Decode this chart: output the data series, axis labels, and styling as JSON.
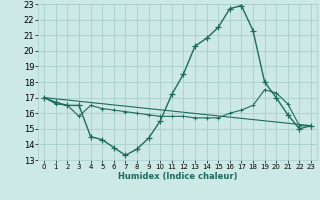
{
  "xlabel": "Humidex (Indice chaleur)",
  "xlim": [
    -0.5,
    23.5
  ],
  "ylim": [
    13,
    23
  ],
  "yticks": [
    13,
    14,
    15,
    16,
    17,
    18,
    19,
    20,
    21,
    22,
    23
  ],
  "xticks": [
    0,
    1,
    2,
    3,
    4,
    5,
    6,
    7,
    8,
    9,
    10,
    11,
    12,
    13,
    14,
    15,
    16,
    17,
    18,
    19,
    20,
    21,
    22,
    23
  ],
  "bg_color": "#cce9e5",
  "grid_color": "#aacfcb",
  "line_color": "#1e6b5e",
  "series1_x": [
    0,
    1,
    2,
    3,
    4,
    5,
    6,
    7,
    8,
    9,
    10,
    11,
    12,
    13,
    14,
    15,
    16,
    17,
    18,
    19,
    20,
    21,
    22,
    23
  ],
  "series1_y": [
    17.0,
    16.7,
    16.5,
    16.5,
    14.5,
    14.3,
    13.8,
    13.3,
    13.7,
    14.4,
    15.5,
    17.2,
    18.5,
    20.3,
    20.8,
    21.5,
    22.7,
    22.9,
    21.3,
    18.0,
    17.0,
    15.9,
    15.0,
    15.2
  ],
  "series2_x": [
    0,
    1,
    2,
    3,
    4,
    5,
    6,
    7,
    8,
    9,
    10,
    11,
    12,
    13,
    14,
    15,
    16,
    17,
    18,
    19,
    20,
    21,
    22,
    23
  ],
  "series2_y": [
    17.0,
    16.6,
    16.5,
    15.8,
    16.5,
    16.3,
    16.2,
    16.1,
    16.0,
    15.9,
    15.8,
    15.8,
    15.8,
    15.7,
    15.7,
    15.7,
    16.0,
    16.2,
    16.5,
    17.5,
    17.3,
    16.6,
    15.2,
    15.2
  ],
  "series3_x": [
    0,
    23
  ],
  "series3_y": [
    17.0,
    15.2
  ]
}
